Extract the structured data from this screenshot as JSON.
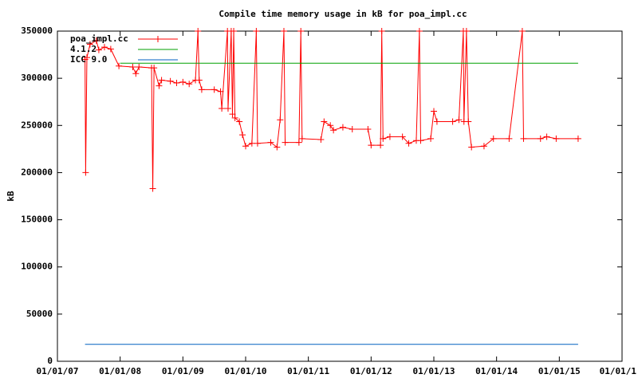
{
  "chart_data": {
    "type": "line",
    "title": "Compile time memory usage in kB for poa_impl.cc",
    "y_label": "kB",
    "xlim": [
      2007,
      2016
    ],
    "ylim": [
      0,
      350000
    ],
    "xticks": [
      {
        "value": 2007,
        "label": "01/01/07"
      },
      {
        "value": 2008,
        "label": "01/01/08"
      },
      {
        "value": 2009,
        "label": "01/01/09"
      },
      {
        "value": 2010,
        "label": "01/01/10"
      },
      {
        "value": 2011,
        "label": "01/01/11"
      },
      {
        "value": 2012,
        "label": "01/01/12"
      },
      {
        "value": 2013,
        "label": "01/01/13"
      },
      {
        "value": 2014,
        "label": "01/01/14"
      },
      {
        "value": 2015,
        "label": "01/01/15"
      },
      {
        "value": 2016,
        "label": "01/01/1"
      }
    ],
    "yticks": [
      0,
      50000,
      100000,
      150000,
      200000,
      250000,
      300000,
      350000
    ],
    "grid": false,
    "legend": "top-left",
    "series": [
      {
        "name": "poa_impl.cc",
        "color": "#ff0000",
        "markers": true,
        "x": [
          2007.44,
          2007.45,
          2007.47,
          2007.52,
          2007.62,
          2007.66,
          2007.75,
          2007.85,
          2007.98,
          2008.2,
          2008.25,
          2008.3,
          2008.5,
          2008.52,
          2008.54,
          2008.62,
          2008.66,
          2008.8,
          2008.9,
          2009.0,
          2009.1,
          2009.2,
          2009.24,
          2009.26,
          2009.3,
          2009.5,
          2009.6,
          2009.62,
          2009.71,
          2009.72,
          2009.77,
          2009.79,
          2009.81,
          2009.83,
          2009.9,
          2009.95,
          2010.0,
          2010.1,
          2010.17,
          2010.19,
          2010.4,
          2010.5,
          2010.55,
          2010.61,
          2010.63,
          2010.85,
          2010.88,
          2010.9,
          2011.2,
          2011.25,
          2011.35,
          2011.4,
          2011.55,
          2011.7,
          2011.95,
          2012.0,
          2012.15,
          2012.17,
          2012.19,
          2012.3,
          2012.5,
          2012.6,
          2012.72,
          2012.77,
          2012.79,
          2012.95,
          2013.0,
          2013.05,
          2013.3,
          2013.4,
          2013.47,
          2013.48,
          2013.52,
          2013.55,
          2013.6,
          2013.8,
          2013.95,
          2014.2,
          2014.41,
          2014.43,
          2014.7,
          2014.8,
          2014.95,
          2015.3
        ],
        "values": [
          320000,
          200000,
          322000,
          336000,
          340000,
          330000,
          333000,
          331000,
          313000,
          312000,
          305000,
          312000,
          311000,
          183000,
          311000,
          292000,
          298000,
          297000,
          295000,
          296000,
          294000,
          298000,
          350000,
          298000,
          288000,
          288000,
          286000,
          268000,
          350000,
          268000,
          350000,
          262000,
          350000,
          258000,
          254000,
          240000,
          228000,
          231000,
          350000,
          231000,
          232000,
          227000,
          256000,
          350000,
          232000,
          232000,
          350000,
          236000,
          235000,
          254000,
          250000,
          245000,
          248000,
          246000,
          246000,
          229000,
          229000,
          350000,
          236000,
          238000,
          238000,
          231000,
          234000,
          350000,
          234000,
          236000,
          265000,
          254000,
          254000,
          256000,
          350000,
          254000,
          350000,
          254000,
          227000,
          228000,
          236000,
          236000,
          350000,
          236000,
          236000,
          238000,
          236000,
          236000
        ]
      },
      {
        "name": "4.1.2",
        "color": "#00a000",
        "markers": false,
        "x": [
          2008.0,
          2015.3
        ],
        "values": [
          316000,
          316000
        ]
      },
      {
        "name": "ICC 9.0",
        "color": "#0060c0",
        "markers": false,
        "x": [
          2007.44,
          2015.3
        ],
        "values": [
          18000,
          18000
        ]
      }
    ]
  }
}
